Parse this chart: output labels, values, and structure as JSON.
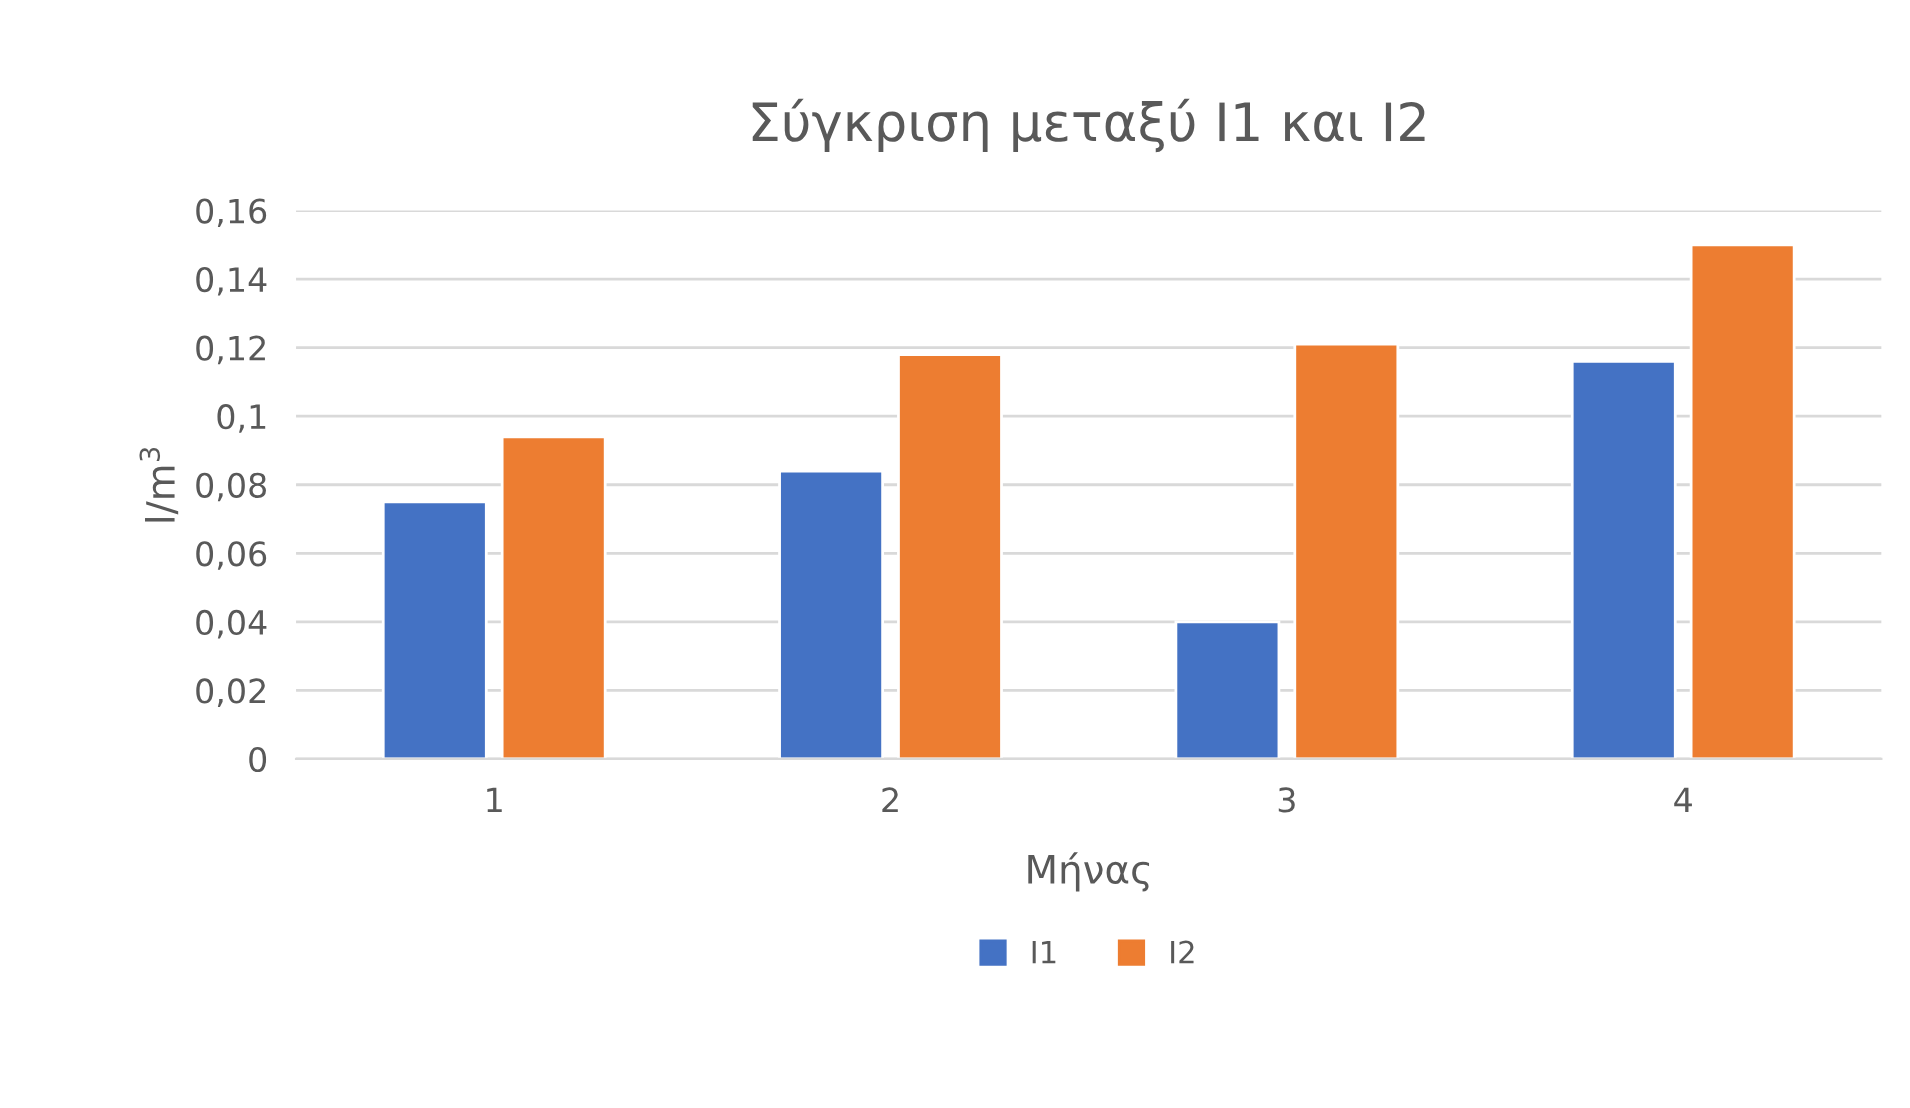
{
  "chart_data": {
    "type": "bar",
    "title": "Σύγκριση μεταξύ I1 και I2",
    "xlabel": "Μήνας",
    "ylabel": "l/m$^{3}$",
    "categories": [
      "1",
      "2",
      "3",
      "4"
    ],
    "series": [
      {
        "name": "I1",
        "color": "#4472c4",
        "values": [
          0.075,
          0.084,
          0.04,
          0.116
        ]
      },
      {
        "name": "I2",
        "color": "#ed7d31",
        "values": [
          0.094,
          0.118,
          0.121,
          0.15
        ]
      }
    ],
    "ylim": [
      0,
      0.16
    ],
    "yticks": [
      {
        "value": 0,
        "label": "0"
      },
      {
        "value": 0.02,
        "label": "0,02"
      },
      {
        "value": 0.04,
        "label": "0,04"
      },
      {
        "value": 0.06,
        "label": "0,06"
      },
      {
        "value": 0.08,
        "label": "0,08"
      },
      {
        "value": 0.1,
        "label": "0,1"
      },
      {
        "value": 0.12,
        "label": "0,12"
      },
      {
        "value": 0.14,
        "label": "0,14"
      },
      {
        "value": 0.16,
        "label": "0,16"
      }
    ],
    "grid": "y",
    "legend": "bottom"
  }
}
